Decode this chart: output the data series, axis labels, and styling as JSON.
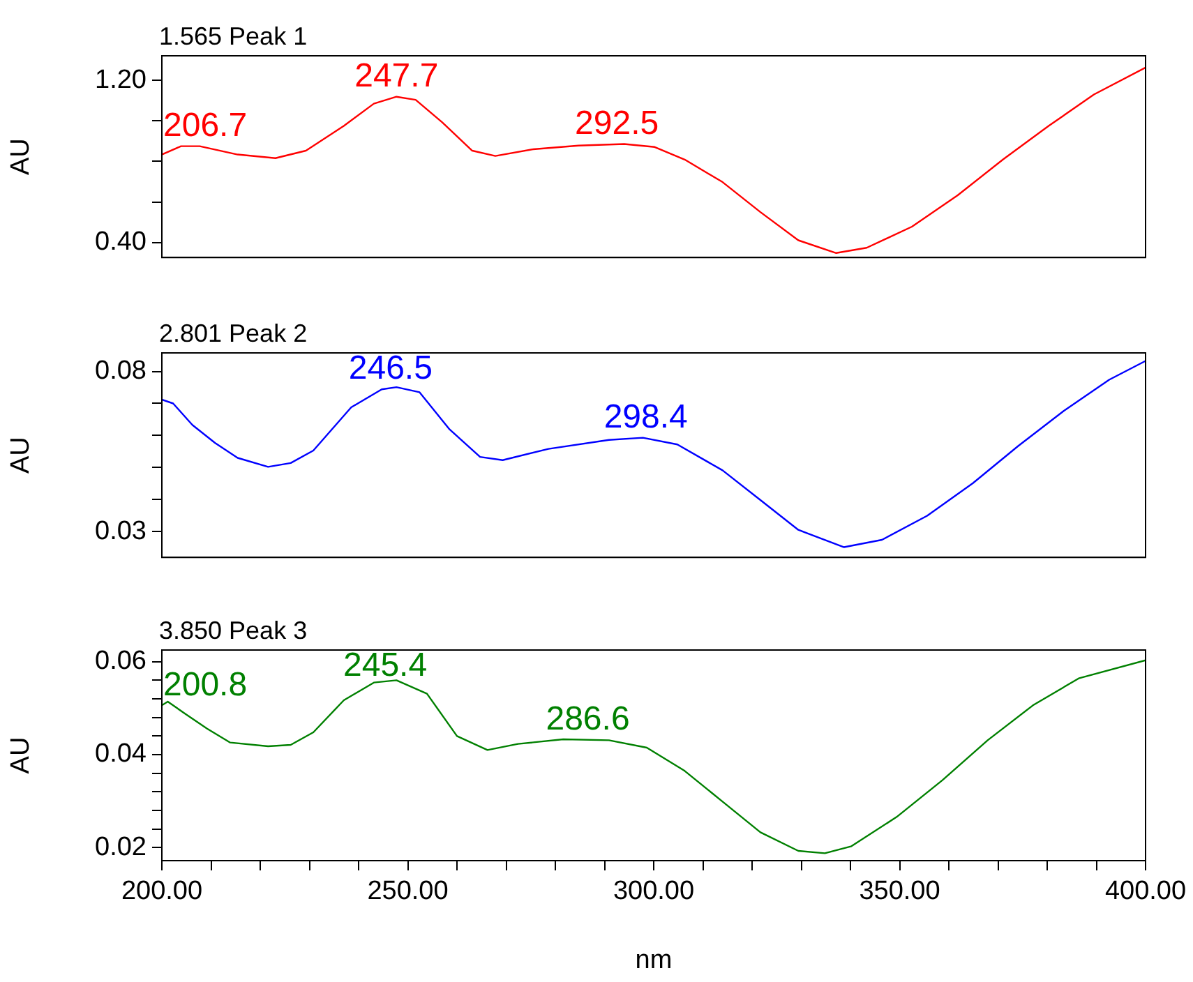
{
  "chart_data": [
    {
      "type": "line",
      "title": "1.565 Peak 1",
      "ylabel": "AU",
      "tick_labels": "y",
      "xlim": [
        200,
        400
      ],
      "ylim": [
        0.326,
        1.321
      ],
      "yticks": [
        {
          "value": 0.4,
          "label": "0.40"
        },
        {
          "value": 0.6,
          "label": null
        },
        {
          "value": 0.8,
          "label": null
        },
        {
          "value": 1.0,
          "label": null
        },
        {
          "value": 1.2,
          "label": "1.20"
        }
      ],
      "series": [
        {
          "color": "#ff0000",
          "x": [
            200,
            203.9,
            207.7,
            215.4,
            223.1,
            229.3,
            237,
            243.1,
            247.7,
            251.6,
            257,
            263.1,
            267.8,
            275.5,
            284.7,
            294,
            300.2,
            306.3,
            314,
            321.7,
            329.4,
            337.1,
            343.3,
            352.5,
            361.8,
            371,
            380.3,
            389.5,
            400
          ],
          "values": [
            0.834,
            0.875,
            0.875,
            0.834,
            0.816,
            0.853,
            0.975,
            1.085,
            1.119,
            1.104,
            0.993,
            0.853,
            0.827,
            0.86,
            0.878,
            0.886,
            0.871,
            0.809,
            0.698,
            0.55,
            0.411,
            0.348,
            0.374,
            0.478,
            0.633,
            0.809,
            0.975,
            1.13,
            1.263
          ]
        }
      ],
      "annotations": [
        {
          "text": "206.7",
          "x": 206.7,
          "y": 0.875
        },
        {
          "text": "247.7",
          "x": 247.7,
          "y": 1.119
        },
        {
          "text": "292.5",
          "x": 292.5,
          "y": 0.886
        }
      ]
    },
    {
      "type": "line",
      "title": "2.801 Peak 2",
      "ylabel": "AU",
      "tick_labels": "y",
      "xlim": [
        200,
        400
      ],
      "ylim": [
        0.0219,
        0.0858
      ],
      "yticks": [
        {
          "value": 0.03,
          "label": "0.03"
        },
        {
          "value": 0.04,
          "label": null
        },
        {
          "value": 0.05,
          "label": null
        },
        {
          "value": 0.06,
          "label": null
        },
        {
          "value": 0.07,
          "label": null
        },
        {
          "value": 0.08,
          "label": "0.08"
        }
      ],
      "series": [
        {
          "color": "#0000ff",
          "x": [
            200,
            202.3,
            206.2,
            210.8,
            215.4,
            221.6,
            226.2,
            230.8,
            238.5,
            244.7,
            247.7,
            252.4,
            258.5,
            264.7,
            269.3,
            278.6,
            290.9,
            297.8,
            304.8,
            314,
            321.7,
            329.4,
            338.7,
            346.4,
            355.6,
            364.9,
            374.1,
            383.4,
            392.6,
            400
          ],
          "values": [
            0.0712,
            0.07,
            0.0633,
            0.0577,
            0.053,
            0.0502,
            0.0514,
            0.0553,
            0.0688,
            0.0744,
            0.0751,
            0.0735,
            0.0619,
            0.0533,
            0.0523,
            0.0558,
            0.0586,
            0.0593,
            0.0572,
            0.0491,
            0.0398,
            0.0305,
            0.0251,
            0.0274,
            0.0349,
            0.0451,
            0.0567,
            0.0677,
            0.0774,
            0.0833
          ]
        }
      ],
      "annotations": [
        {
          "text": "246.5",
          "x": 246.5,
          "y": 0.0749
        },
        {
          "text": "298.4",
          "x": 298.4,
          "y": 0.0593
        }
      ]
    },
    {
      "type": "line",
      "title": "3.850 Peak 3",
      "xlabel": "nm",
      "ylabel": "AU",
      "xlim": [
        200,
        400
      ],
      "ylim": [
        0.0172,
        0.0625
      ],
      "xticks": [
        {
          "value": 200,
          "label": "200.00"
        },
        {
          "value": 210,
          "label": null
        },
        {
          "value": 220,
          "label": null
        },
        {
          "value": 230,
          "label": null
        },
        {
          "value": 240,
          "label": null
        },
        {
          "value": 250,
          "label": "250.00"
        },
        {
          "value": 260,
          "label": null
        },
        {
          "value": 270,
          "label": null
        },
        {
          "value": 280,
          "label": null
        },
        {
          "value": 290,
          "label": null
        },
        {
          "value": 300,
          "label": "300.00"
        },
        {
          "value": 310,
          "label": null
        },
        {
          "value": 320,
          "label": null
        },
        {
          "value": 330,
          "label": null
        },
        {
          "value": 340,
          "label": null
        },
        {
          "value": 350,
          "label": "350.00"
        },
        {
          "value": 360,
          "label": null
        },
        {
          "value": 370,
          "label": null
        },
        {
          "value": 380,
          "label": null
        },
        {
          "value": 390,
          "label": null
        },
        {
          "value": 400,
          "label": "400.00"
        }
      ],
      "yticks": [
        {
          "value": 0.02,
          "label": "0.02"
        },
        {
          "value": 0.024,
          "label": null
        },
        {
          "value": 0.028,
          "label": null
        },
        {
          "value": 0.032,
          "label": null
        },
        {
          "value": 0.036,
          "label": null
        },
        {
          "value": 0.04,
          "label": "0.04"
        },
        {
          "value": 0.044,
          "label": null
        },
        {
          "value": 0.048,
          "label": null
        },
        {
          "value": 0.052,
          "label": null
        },
        {
          "value": 0.056,
          "label": null
        },
        {
          "value": 0.06,
          "label": "0.06"
        }
      ],
      "series": [
        {
          "color": "#008000",
          "x": [
            200,
            201.2,
            204.6,
            209.2,
            213.9,
            221.6,
            226.2,
            230.8,
            237,
            243.1,
            247.7,
            253.9,
            260,
            266.2,
            272.4,
            281.6,
            290.9,
            298.6,
            306.3,
            314,
            321.7,
            329.4,
            334.8,
            340.2,
            349.4,
            358.7,
            367.9,
            377.1,
            386.4,
            400
          ],
          "values": [
            0.0506,
            0.0514,
            0.0489,
            0.0456,
            0.0426,
            0.0418,
            0.0421,
            0.0448,
            0.0517,
            0.0555,
            0.056,
            0.0531,
            0.044,
            0.041,
            0.0423,
            0.0433,
            0.0431,
            0.0415,
            0.0365,
            0.0299,
            0.0233,
            0.0193,
            0.0188,
            0.0203,
            0.0266,
            0.0345,
            0.0431,
            0.0506,
            0.0564,
            0.0603
          ]
        }
      ],
      "annotations": [
        {
          "text": "200.8",
          "x": 200.8,
          "y": 0.0506
        },
        {
          "text": "245.4",
          "x": 245.4,
          "y": 0.0557
        },
        {
          "text": "286.6",
          "x": 286.6,
          "y": 0.0432
        }
      ]
    }
  ]
}
